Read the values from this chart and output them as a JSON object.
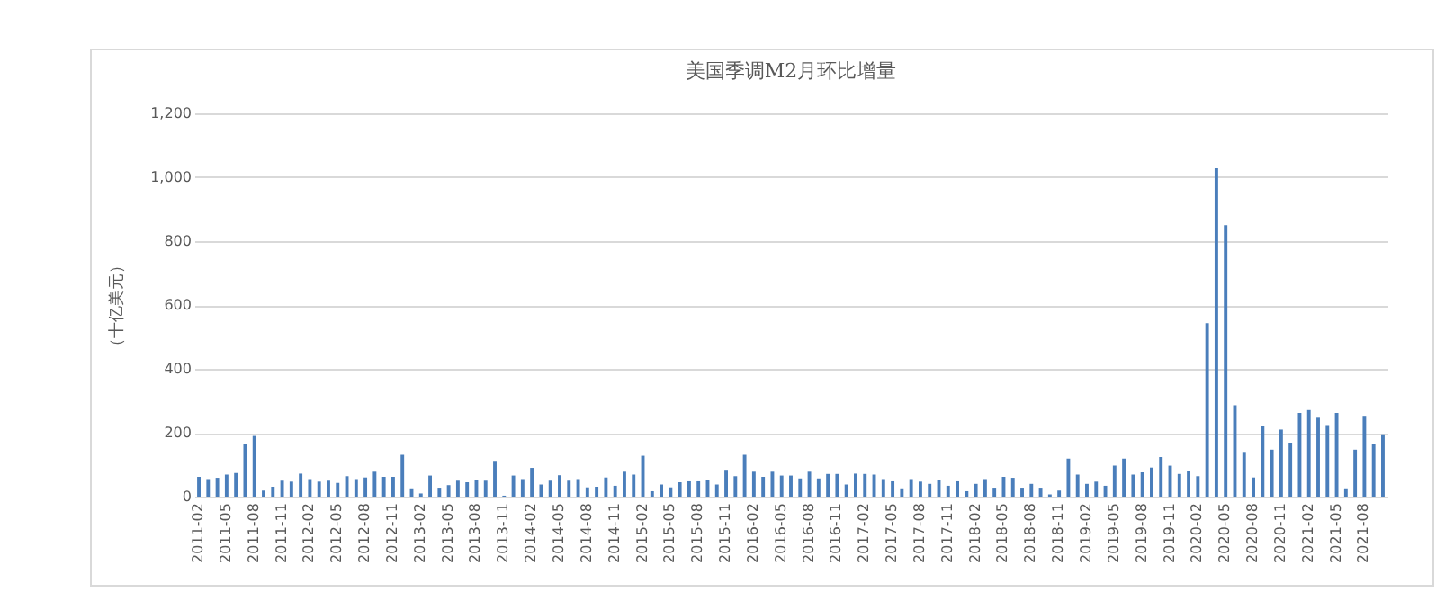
{
  "chart_data": {
    "type": "bar",
    "title": "美国季调M2月环比增量",
    "ylabel": "（十亿美元）",
    "categories": [
      "2011-02",
      null,
      null,
      "2011-05",
      null,
      null,
      "2011-08",
      null,
      null,
      "2011-11",
      null,
      null,
      "2012-02",
      null,
      null,
      "2012-05",
      null,
      null,
      "2012-08",
      null,
      null,
      "2012-11",
      null,
      null,
      "2013-02",
      null,
      null,
      "2013-05",
      null,
      null,
      "2013-08",
      null,
      null,
      "2013-11",
      null,
      null,
      "2014-02",
      null,
      null,
      "2014-05",
      null,
      null,
      "2014-08",
      null,
      null,
      "2014-11",
      null,
      null,
      "2015-02",
      null,
      null,
      "2015-05",
      null,
      null,
      "2015-08",
      null,
      null,
      "2015-11",
      null,
      null,
      "2016-02",
      null,
      null,
      "2016-05",
      null,
      null,
      "2016-08",
      null,
      null,
      "2016-11",
      null,
      null,
      "2017-02",
      null,
      null,
      "2017-05",
      null,
      null,
      "2017-08",
      null,
      null,
      "2017-11",
      null,
      null,
      "2018-02",
      null,
      null,
      "2018-05",
      null,
      null,
      "2018-08",
      null,
      null,
      "2018-11",
      null,
      null,
      "2019-02",
      null,
      null,
      "2019-05",
      null,
      null,
      "2019-08",
      null,
      null,
      "2019-11",
      null,
      null,
      "2020-02",
      null,
      null,
      "2020-05",
      null,
      null,
      "2020-08",
      null,
      null,
      "2020-11",
      null,
      null,
      "2021-02",
      null,
      null,
      "2021-05",
      null,
      null,
      "2021-08",
      null,
      null
    ],
    "values": [
      62,
      55,
      59,
      69,
      74,
      164,
      190,
      19,
      31,
      50,
      47,
      72,
      55,
      47,
      50,
      43,
      64,
      55,
      60,
      78,
      62,
      62,
      131,
      26,
      10,
      66,
      28,
      36,
      50,
      45,
      53,
      50,
      112,
      3,
      66,
      55,
      90,
      38,
      50,
      67,
      50,
      55,
      29,
      31,
      60,
      34,
      78,
      69,
      128,
      17,
      38,
      29,
      45,
      48,
      48,
      53,
      38,
      84,
      64,
      131,
      78,
      62,
      78,
      66,
      66,
      57,
      78,
      57,
      71,
      71,
      38,
      72,
      71,
      69,
      55,
      48,
      26,
      55,
      47,
      40,
      53,
      34,
      48,
      17,
      40,
      55,
      28,
      62,
      59,
      28,
      40,
      28,
      7,
      19,
      119,
      69,
      40,
      47,
      34,
      97,
      119,
      69,
      76,
      91,
      124,
      97,
      71,
      79,
      64,
      543,
      1028,
      850,
      286,
      140,
      60,
      221,
      147,
      210,
      169,
      262,
      271,
      247,
      224,
      262,
      26,
      147,
      253,
      164,
      195
    ],
    "color": "#4a7ebb",
    "ylim": [
      0,
      1200
    ],
    "yticks": [
      {
        "value": 0,
        "label": "0"
      },
      {
        "value": 200,
        "label": "200"
      },
      {
        "value": 400,
        "label": "400"
      },
      {
        "value": 600,
        "label": "600"
      },
      {
        "value": 800,
        "label": "800"
      },
      {
        "value": 1000,
        "label": "1,000"
      },
      {
        "value": 1200,
        "label": "1,200"
      }
    ],
    "grid": "y"
  }
}
